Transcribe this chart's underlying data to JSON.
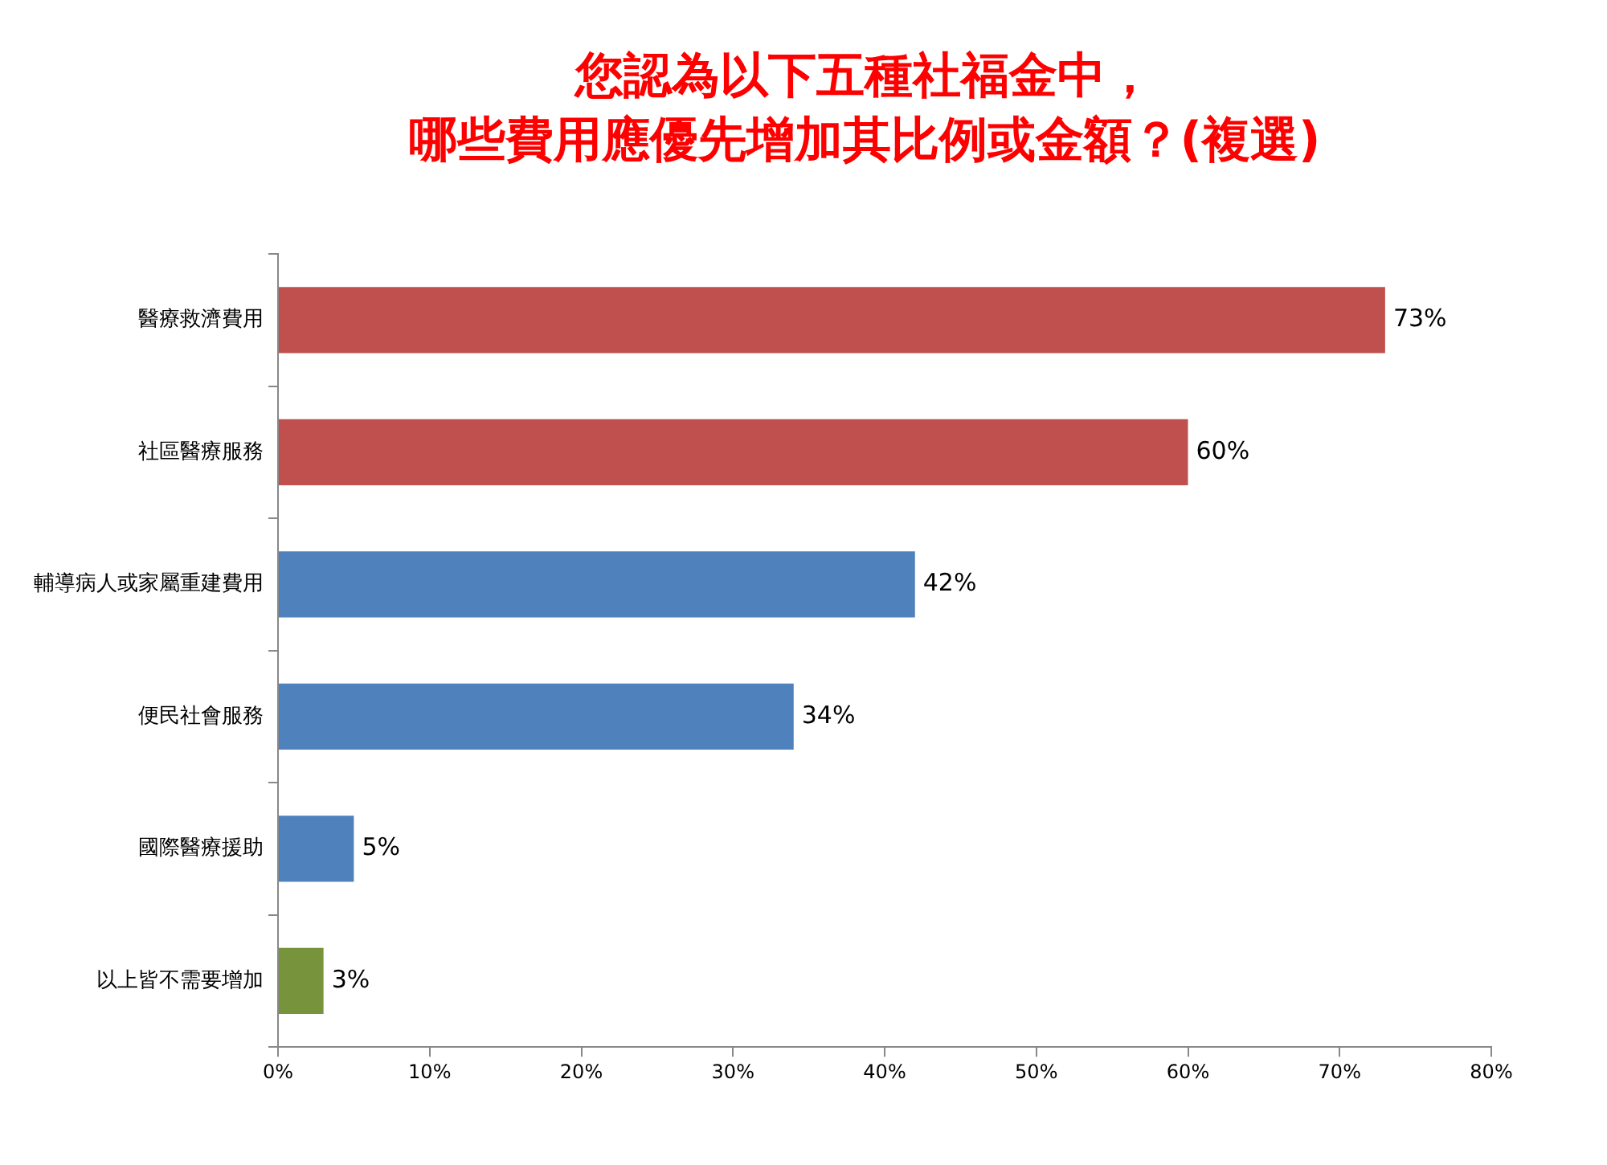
{
  "chart_data": {
    "type": "bar",
    "orientation": "horizontal",
    "title": "您認為以下五種社福金中，哪些費用應優先增加其比例或金額？(複選)",
    "categories": [
      "醫療救濟費用",
      "社區醫療服務",
      "輔導病人或家屬重建費用",
      "便民社會服務",
      "國際醫療援助",
      "以上皆不需要增加"
    ],
    "values": [
      73,
      60,
      42,
      34,
      5,
      3
    ],
    "colors": [
      "#c0504d",
      "#c0504d",
      "#4f81bd",
      "#4f81bd",
      "#4f81bd",
      "#77933c"
    ],
    "value_labels": [
      "73%",
      "60%",
      "42%",
      "34%",
      "5%",
      "3%"
    ],
    "xlim": [
      0,
      80
    ],
    "xticks": [
      {
        "value": 0,
        "label": "0%"
      },
      {
        "value": 10,
        "label": "10%"
      },
      {
        "value": 20,
        "label": "20%"
      },
      {
        "value": 30,
        "label": "30%"
      },
      {
        "value": 40,
        "label": "40%"
      },
      {
        "value": 50,
        "label": "50%"
      },
      {
        "value": 60,
        "label": "60%"
      },
      {
        "value": 70,
        "label": "70%"
      },
      {
        "value": 80,
        "label": "80%"
      }
    ],
    "grid": false,
    "legend": false
  }
}
